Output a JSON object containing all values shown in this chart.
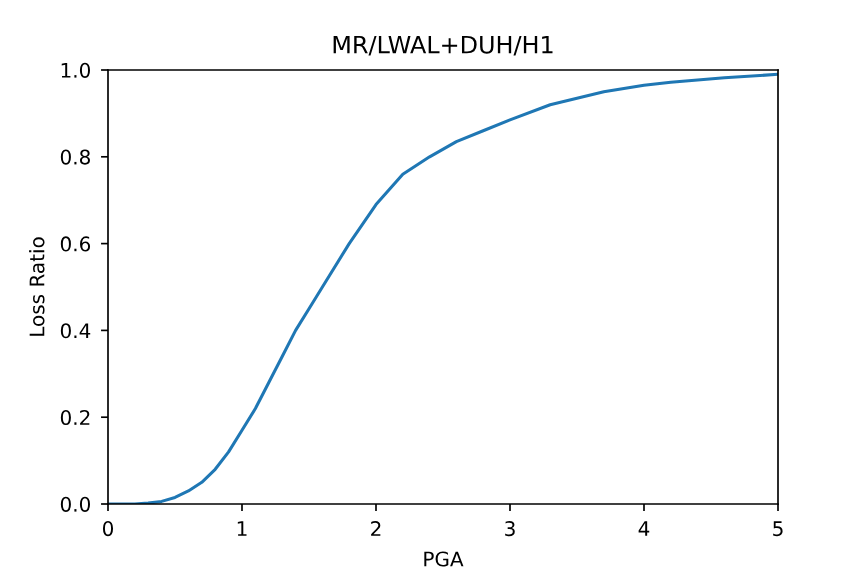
{
  "chart_data": {
    "type": "line",
    "title": "MR/LWAL+DUH/H1",
    "xlabel": "PGA",
    "ylabel": "Loss Ratio",
    "series": [
      {
        "color": "#1f77b4",
        "x": [
          0,
          0.2,
          0.3,
          0.4,
          0.5,
          0.6,
          0.7,
          0.8,
          0.9,
          1.0,
          1.1,
          1.2,
          1.3,
          1.4,
          1.5,
          1.6,
          1.8,
          2.0,
          2.2,
          2.4,
          2.6,
          2.8,
          3.0,
          3.3,
          3.7,
          4.0,
          4.2,
          4.6,
          5.0
        ],
        "values": [
          0,
          0,
          0.002,
          0.006,
          0.015,
          0.03,
          0.05,
          0.08,
          0.12,
          0.17,
          0.22,
          0.28,
          0.34,
          0.4,
          0.45,
          0.5,
          0.6,
          0.69,
          0.76,
          0.8,
          0.835,
          0.86,
          0.885,
          0.92,
          0.95,
          0.965,
          0.972,
          0.982,
          0.99
        ]
      }
    ],
    "xlim": [
      0,
      5
    ],
    "ylim": [
      0,
      1
    ],
    "xticks": [
      0,
      1,
      2,
      3,
      4,
      5
    ],
    "yticks": [
      {
        "value": 0,
        "label": "0.0"
      },
      {
        "value": 0.2,
        "label": "0.2"
      },
      {
        "value": 0.4,
        "label": "0.4"
      },
      {
        "value": 0.6,
        "label": "0.6"
      },
      {
        "value": 0.8,
        "label": "0.8"
      },
      {
        "value": 1,
        "label": "1.0"
      }
    ],
    "grid": false,
    "marker": "none",
    "line_style": "solid"
  }
}
